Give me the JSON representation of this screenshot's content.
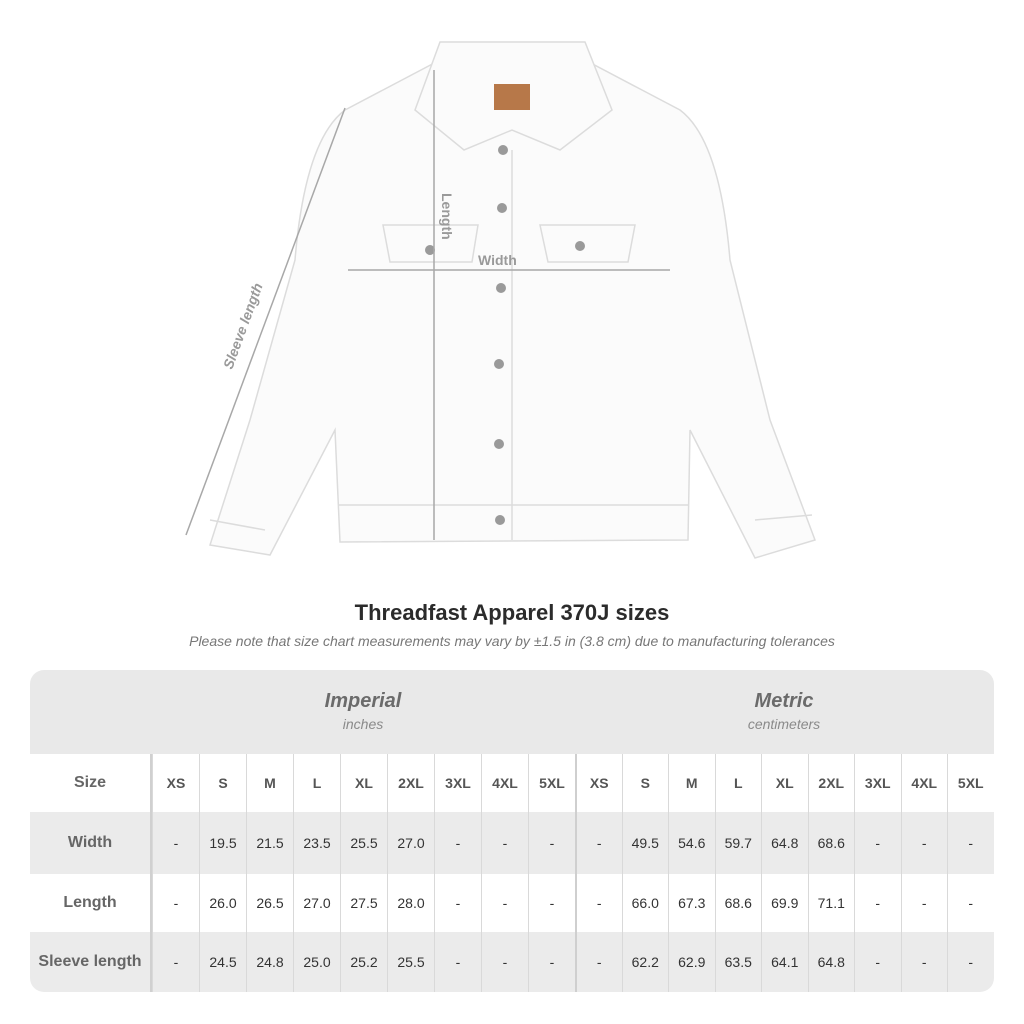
{
  "measure_labels": {
    "length": "Length",
    "width": "Width",
    "sleeve": "Sleeve length"
  },
  "title": "Threadfast Apparel 370J sizes",
  "subtitle": "Please note that size chart measurements may vary by ±1.5 in (3.8 cm) due to manufacturing tolerances",
  "table": {
    "imperial": {
      "name": "Imperial",
      "unit": "inches"
    },
    "metric": {
      "name": "Metric",
      "unit": "centimeters"
    },
    "size_label": "Size",
    "sizes": [
      "XS",
      "S",
      "M",
      "L",
      "XL",
      "2XL",
      "3XL",
      "4XL",
      "5XL"
    ],
    "rows": [
      {
        "label": "Width",
        "imperial": [
          "-",
          "19.5",
          "21.5",
          "23.5",
          "25.5",
          "27.0",
          "-",
          "-",
          "-"
        ],
        "metric": [
          "-",
          "49.5",
          "54.6",
          "59.7",
          "64.8",
          "68.6",
          "-",
          "-",
          "-"
        ]
      },
      {
        "label": "Length",
        "imperial": [
          "-",
          "26.0",
          "26.5",
          "27.0",
          "27.5",
          "28.0",
          "-",
          "-",
          "-"
        ],
        "metric": [
          "-",
          "66.0",
          "67.3",
          "68.6",
          "69.9",
          "71.1",
          "-",
          "-",
          "-"
        ]
      },
      {
        "label": "Sleeve length",
        "imperial": [
          "-",
          "24.5",
          "24.8",
          "25.0",
          "25.2",
          "25.5",
          "-",
          "-",
          "-"
        ],
        "metric": [
          "-",
          "62.2",
          "62.9",
          "63.5",
          "64.1",
          "64.8",
          "-",
          "-",
          "-"
        ]
      }
    ]
  }
}
